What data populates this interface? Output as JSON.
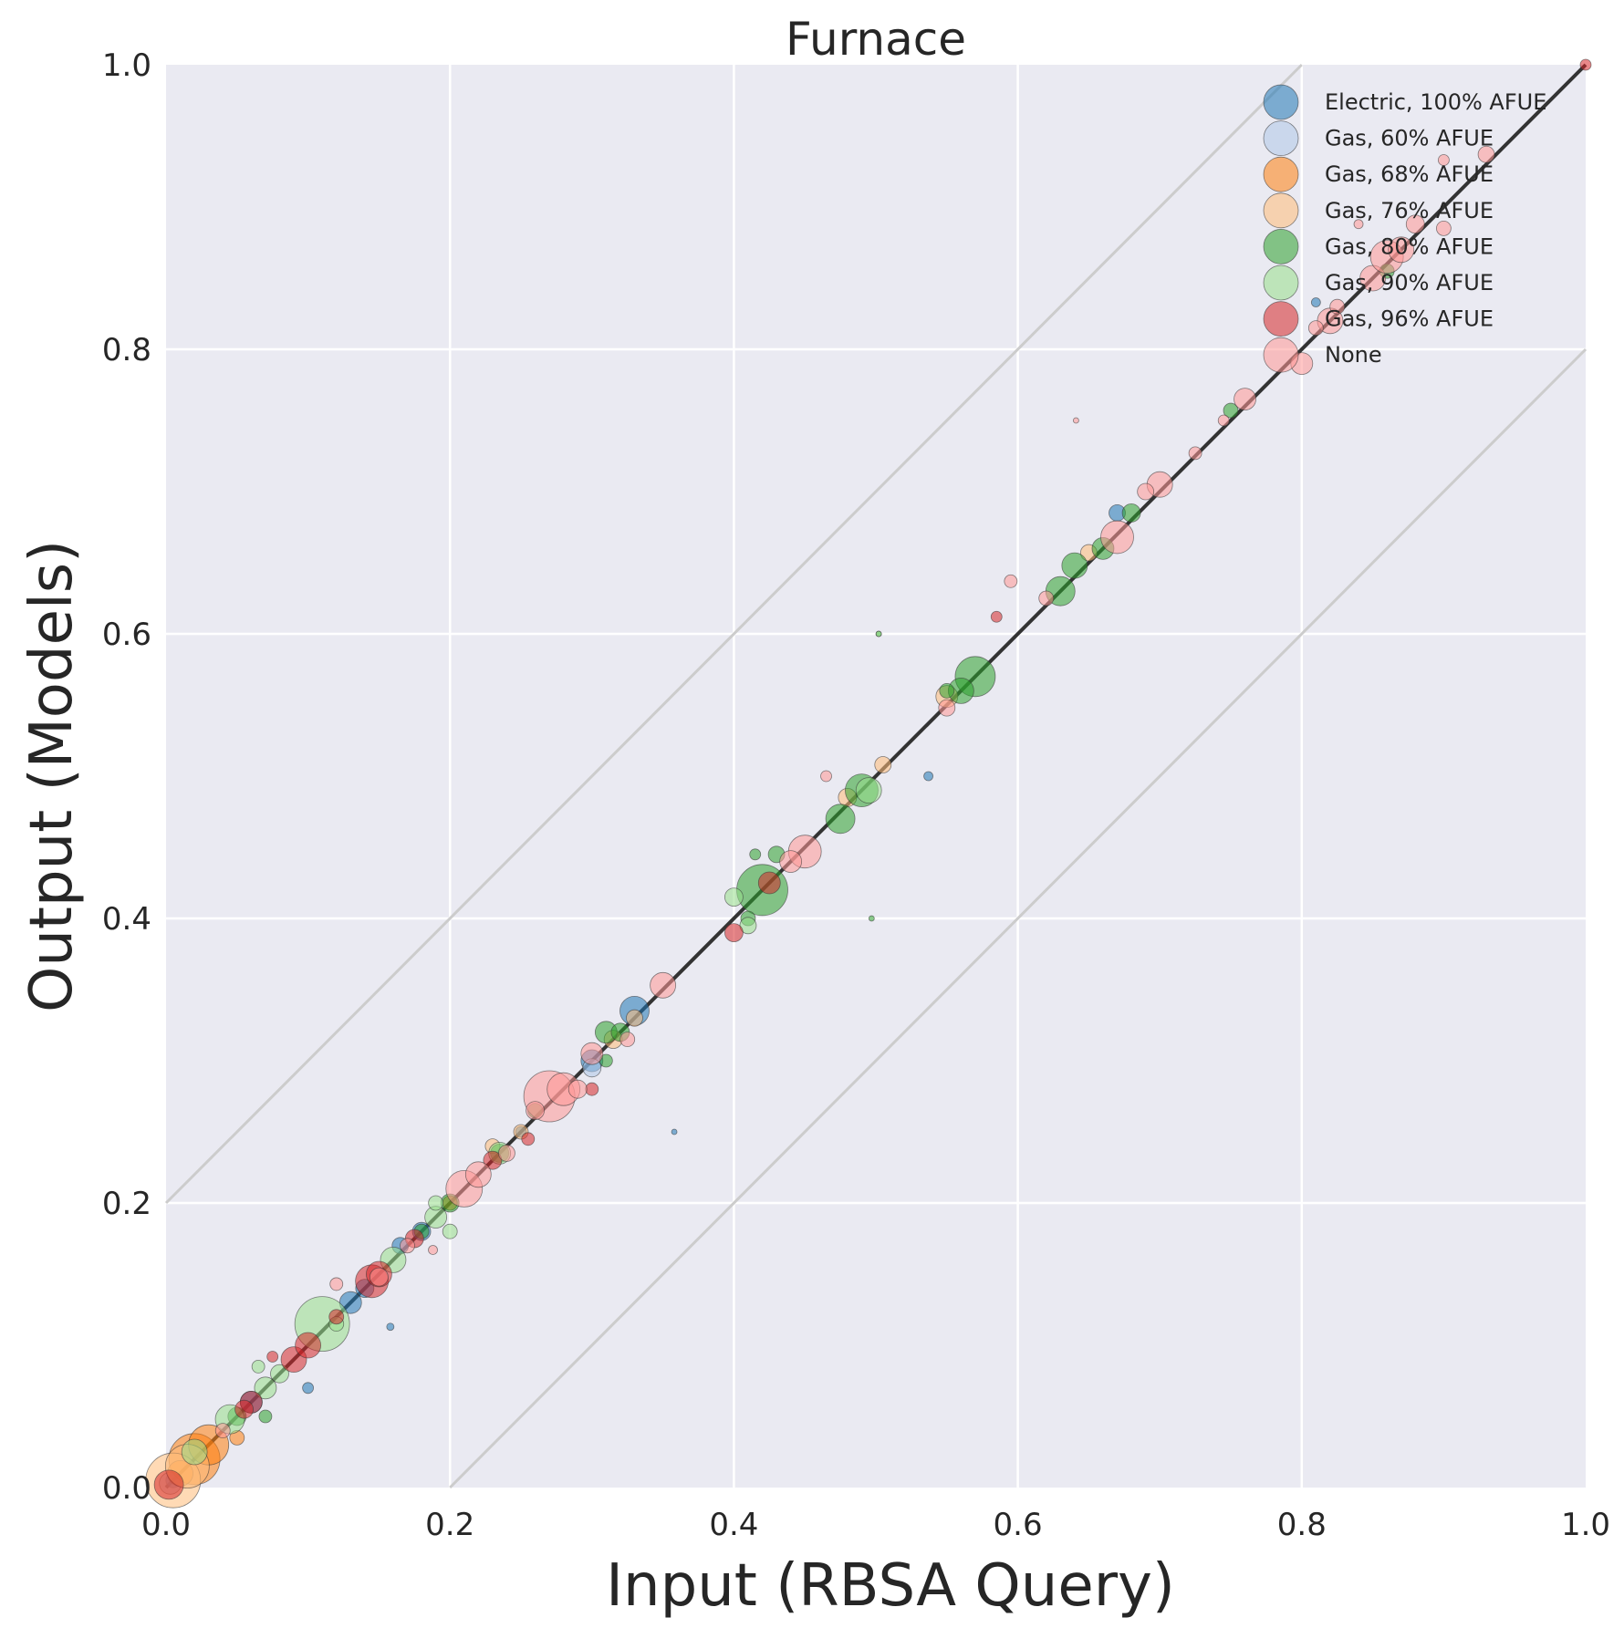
{
  "chart_data": {
    "type": "scatter",
    "title": "Furnace",
    "xlabel": "Input (RBSA Query)",
    "ylabel": "Output (Models)",
    "xlim": [
      0.0,
      1.0
    ],
    "ylim": [
      0.0,
      1.0
    ],
    "xticks": [
      "0.0",
      "0.2",
      "0.4",
      "0.6",
      "0.8",
      "1.0"
    ],
    "yticks": [
      "0.0",
      "0.2",
      "0.4",
      "0.6",
      "0.8",
      "1.0"
    ],
    "grid": true,
    "background": "#EAEAF2",
    "legend_position": "top-right",
    "reference_lines": [
      {
        "role": "identity",
        "points": [
          [
            0,
            0
          ],
          [
            1,
            1
          ]
        ],
        "color": "#333333"
      },
      {
        "role": "upper-bound",
        "points": [
          [
            0,
            0.2
          ],
          [
            0.8,
            1.0
          ]
        ],
        "color": "#CCCCCC"
      },
      {
        "role": "lower-bound",
        "points": [
          [
            0.2,
            0
          ],
          [
            1.0,
            0.8
          ]
        ],
        "color": "#CCCCCC"
      }
    ],
    "series": [
      {
        "name": "Electric, 100% AFUE",
        "color": "#1f77b4",
        "points": [
          [
            0.33,
            0.335,
            16
          ],
          [
            0.3,
            0.3,
            12
          ],
          [
            0.165,
            0.17,
            9
          ],
          [
            0.18,
            0.18,
            10
          ],
          [
            0.13,
            0.13,
            12
          ],
          [
            0.14,
            0.14,
            10
          ],
          [
            0.06,
            0.06,
            12
          ],
          [
            0.67,
            0.685,
            9
          ],
          [
            0.537,
            0.5,
            5
          ],
          [
            0.358,
            0.25,
            3
          ],
          [
            0.158,
            0.113,
            4
          ],
          [
            0.1,
            0.07,
            6
          ],
          [
            0.81,
            0.833,
            5
          ],
          [
            0.25,
            0.25,
            6
          ],
          [
            0.005,
            0.005,
            8
          ]
        ]
      },
      {
        "name": "Gas, 60% AFUE",
        "color": "#aec7e8",
        "points": [
          [
            0.003,
            0.003,
            12
          ],
          [
            0.3,
            0.295,
            10
          ]
        ]
      },
      {
        "name": "Gas, 68% AFUE",
        "color": "#ff7f0e",
        "points": [
          [
            0.02,
            0.02,
            28
          ],
          [
            0.03,
            0.03,
            22
          ],
          [
            0.05,
            0.035,
            8
          ],
          [
            0.2,
            0.2,
            8
          ],
          [
            0.01,
            0.01,
            14
          ]
        ]
      },
      {
        "name": "Gas, 76% AFUE",
        "color": "#ffbb78",
        "points": [
          [
            0.005,
            0.005,
            30
          ],
          [
            0.015,
            0.015,
            24
          ],
          [
            0.23,
            0.24,
            8
          ],
          [
            0.33,
            0.33,
            9
          ],
          [
            0.55,
            0.556,
            12
          ],
          [
            0.48,
            0.485,
            10
          ],
          [
            0.505,
            0.508,
            9
          ],
          [
            0.65,
            0.657,
            9
          ],
          [
            0.315,
            0.315,
            10
          ],
          [
            0.25,
            0.25,
            8
          ]
        ]
      },
      {
        "name": "Gas, 80% AFUE",
        "color": "#2ca02c",
        "points": [
          [
            0.42,
            0.42,
            28
          ],
          [
            0.57,
            0.57,
            22
          ],
          [
            0.63,
            0.63,
            16
          ],
          [
            0.49,
            0.49,
            18
          ],
          [
            0.475,
            0.47,
            16
          ],
          [
            0.56,
            0.56,
            14
          ],
          [
            0.64,
            0.648,
            14
          ],
          [
            0.66,
            0.66,
            12
          ],
          [
            0.68,
            0.685,
            10
          ],
          [
            0.31,
            0.32,
            12
          ],
          [
            0.32,
            0.32,
            10
          ],
          [
            0.2,
            0.2,
            10
          ],
          [
            0.26,
            0.265,
            8
          ],
          [
            0.415,
            0.445,
            6
          ],
          [
            0.43,
            0.445,
            9
          ],
          [
            0.41,
            0.4,
            8
          ],
          [
            0.55,
            0.56,
            8
          ],
          [
            0.497,
            0.4,
            3
          ],
          [
            0.502,
            0.6,
            3
          ],
          [
            0.07,
            0.05,
            7
          ],
          [
            0.75,
            0.757,
            8
          ],
          [
            0.86,
            0.855,
            8
          ],
          [
            0.31,
            0.3,
            7
          ],
          [
            0.235,
            0.235,
            10
          ],
          [
            0.18,
            0.18,
            8
          ],
          [
            0.05,
            0.05,
            10
          ]
        ]
      },
      {
        "name": "Gas, 90% AFUE",
        "color": "#98df8a",
        "points": [
          [
            0.11,
            0.115,
            30
          ],
          [
            0.045,
            0.048,
            16
          ],
          [
            0.07,
            0.07,
            12
          ],
          [
            0.08,
            0.08,
            10
          ],
          [
            0.16,
            0.16,
            14
          ],
          [
            0.19,
            0.19,
            12
          ],
          [
            0.4,
            0.415,
            10
          ],
          [
            0.41,
            0.395,
            9
          ],
          [
            0.235,
            0.235,
            12
          ],
          [
            0.19,
            0.2,
            8
          ],
          [
            0.2,
            0.18,
            8
          ],
          [
            0.02,
            0.025,
            14
          ],
          [
            0.12,
            0.115,
            8
          ],
          [
            0.495,
            0.49,
            14
          ],
          [
            0.065,
            0.085,
            7
          ],
          [
            0.502,
            0.6,
            3
          ]
        ]
      },
      {
        "name": "Gas, 96% AFUE",
        "color": "#d62728",
        "points": [
          [
            0.002,
            0.002,
            16
          ],
          [
            0.09,
            0.09,
            14
          ],
          [
            0.1,
            0.1,
            14
          ],
          [
            0.06,
            0.06,
            12
          ],
          [
            0.145,
            0.145,
            18
          ],
          [
            0.15,
            0.15,
            14
          ],
          [
            0.175,
            0.175,
            10
          ],
          [
            0.12,
            0.12,
            8
          ],
          [
            0.4,
            0.39,
            10
          ],
          [
            0.425,
            0.425,
            12
          ],
          [
            0.585,
            0.612,
            6
          ],
          [
            0.23,
            0.23,
            10
          ],
          [
            0.255,
            0.245,
            7
          ],
          [
            0.3,
            0.28,
            7
          ],
          [
            0.055,
            0.055,
            10
          ],
          [
            0.075,
            0.092,
            6
          ],
          [
            1.0,
            1.0,
            6
          ]
        ]
      },
      {
        "name": "None",
        "color": "#ff9896",
        "points": [
          [
            0.27,
            0.275,
            28
          ],
          [
            0.28,
            0.28,
            18
          ],
          [
            0.21,
            0.21,
            20
          ],
          [
            0.22,
            0.22,
            14
          ],
          [
            0.35,
            0.353,
            14
          ],
          [
            0.45,
            0.447,
            18
          ],
          [
            0.44,
            0.44,
            12
          ],
          [
            0.67,
            0.668,
            18
          ],
          [
            0.7,
            0.705,
            14
          ],
          [
            0.76,
            0.765,
            12
          ],
          [
            0.8,
            0.79,
            12
          ],
          [
            0.82,
            0.82,
            14
          ],
          [
            0.85,
            0.85,
            14
          ],
          [
            0.86,
            0.865,
            18
          ],
          [
            0.87,
            0.87,
            14
          ],
          [
            0.88,
            0.888,
            10
          ],
          [
            0.93,
            0.937,
            9
          ],
          [
            0.9,
            0.933,
            6
          ],
          [
            0.9,
            0.885,
            8
          ],
          [
            0.84,
            0.888,
            5
          ],
          [
            0.825,
            0.83,
            8
          ],
          [
            0.725,
            0.727,
            7
          ],
          [
            0.69,
            0.7,
            9
          ],
          [
            0.595,
            0.637,
            7
          ],
          [
            0.62,
            0.625,
            8
          ],
          [
            0.55,
            0.548,
            9
          ],
          [
            0.465,
            0.5,
            6
          ],
          [
            0.641,
            0.75,
            3
          ],
          [
            0.188,
            0.167,
            5
          ],
          [
            0.12,
            0.143,
            7
          ],
          [
            0.29,
            0.28,
            10
          ],
          [
            0.3,
            0.305,
            12
          ],
          [
            0.325,
            0.315,
            8
          ],
          [
            0.26,
            0.265,
            10
          ],
          [
            0.24,
            0.235,
            9
          ],
          [
            0.15,
            0.148,
            10
          ],
          [
            0.17,
            0.17,
            8
          ],
          [
            0.745,
            0.75,
            6
          ],
          [
            0.81,
            0.815,
            8
          ],
          [
            0.04,
            0.04,
            8
          ]
        ]
      }
    ]
  }
}
